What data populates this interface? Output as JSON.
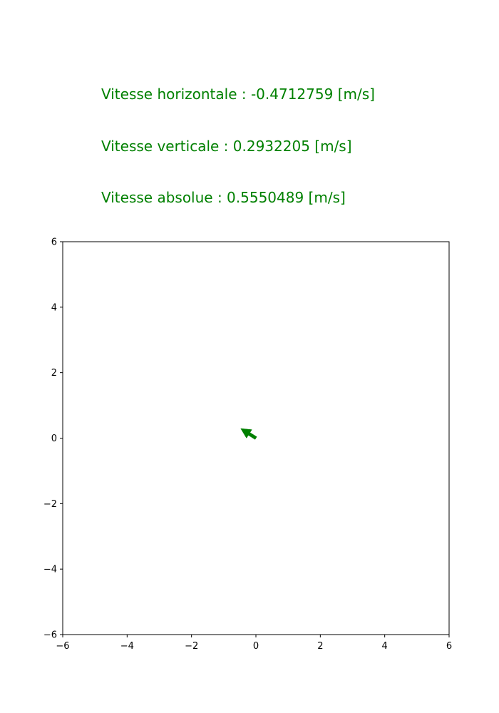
{
  "colors": {
    "accent": "#008000",
    "axis": "#000000",
    "background": "#ffffff"
  },
  "readouts": {
    "horizontal": "Vitesse horizontale : -0.4712759 [m/s]",
    "vertical": "Vitesse verticale : 0.2932205 [m/s]",
    "absolute": "Vitesse absolue : 0.5550489 [m/s]"
  },
  "chart_data": {
    "type": "quiver",
    "title": "",
    "xlabel": "",
    "ylabel": "",
    "xlim": [
      -6,
      6
    ],
    "ylim": [
      -6,
      6
    ],
    "grid": false,
    "xticks": [
      -6,
      -4,
      -2,
      0,
      2,
      4,
      6
    ],
    "yticks": [
      -6,
      -4,
      -2,
      0,
      2,
      4,
      6
    ],
    "xtick_labels": [
      "−6",
      "−4",
      "−2",
      "0",
      "2",
      "4",
      "6"
    ],
    "ytick_labels": [
      "−6",
      "−4",
      "−2",
      "0",
      "2",
      "4",
      "6"
    ],
    "vectors": [
      {
        "x": 0,
        "y": 0,
        "u": -0.4712759,
        "v": 0.2932205,
        "color": "#008000"
      }
    ]
  }
}
